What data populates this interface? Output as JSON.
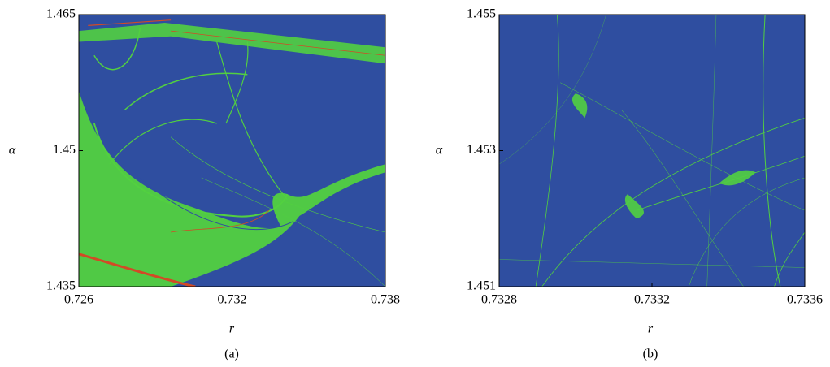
{
  "chart_data": [
    {
      "type": "heatmap",
      "xlabel": "r",
      "ylabel": "α",
      "caption": "(a)",
      "xlim": [
        0.726,
        0.738
      ],
      "xticks": [
        0.726,
        0.732,
        0.738
      ],
      "ylim": [
        1.435,
        1.465
      ],
      "yticks": [
        1.435,
        1.45,
        1.465
      ],
      "colors": [
        "#2f4ea0",
        "#52d040",
        "#d24a26"
      ]
    },
    {
      "type": "heatmap",
      "xlabel": "r",
      "ylabel": "α",
      "caption": "(b)",
      "xlim": [
        0.7328,
        0.7336
      ],
      "xticks": [
        0.7328,
        0.7332,
        0.7336
      ],
      "ylim": [
        1.451,
        1.455
      ],
      "yticks": [
        1.451,
        1.453,
        1.455
      ],
      "colors": [
        "#2f4ea0",
        "#52d040",
        "#d24a26"
      ]
    }
  ]
}
